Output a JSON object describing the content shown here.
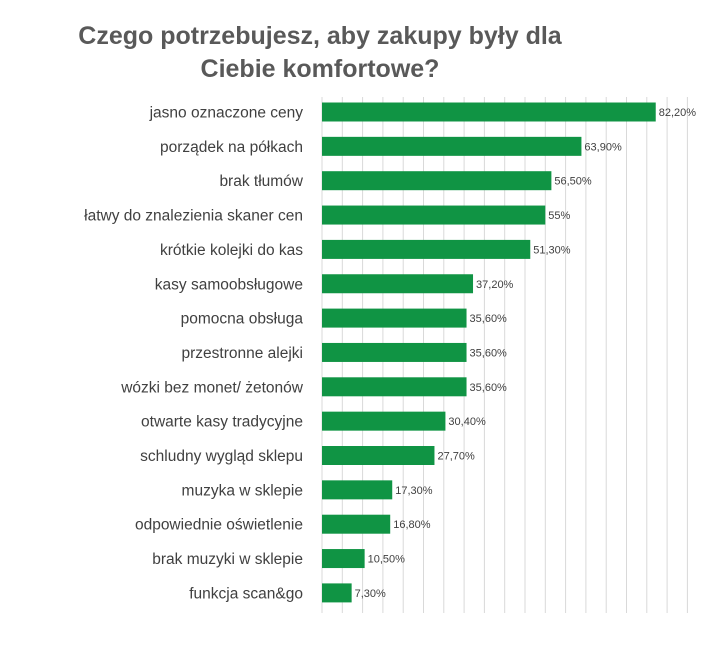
{
  "chart_data": {
    "type": "bar",
    "orientation": "horizontal",
    "title_line1": "Czego potrzebujesz, aby zakupy były dla",
    "title_line2": "Ciebie komfortowe?",
    "categories": [
      "jasno oznaczone ceny",
      "porządek na półkach",
      "brak tłumów",
      "łatwy do znalezienia skaner cen",
      "krótkie kolejki do kas",
      "kasy samoobsługowe",
      "pomocna obsługa",
      "przestronne alejki",
      "wózki bez monet/ żetonów",
      "otwarte kasy tradycyjne",
      "schludny wygląd sklepu",
      "muzyka w sklepie",
      "odpowiednie oświetlenie",
      "brak muzyki w sklepie",
      "funkcja scan&go"
    ],
    "values": [
      82.2,
      63.9,
      56.5,
      55,
      51.3,
      37.2,
      35.6,
      35.6,
      35.6,
      30.4,
      27.7,
      17.3,
      16.8,
      10.5,
      7.3
    ],
    "value_labels": [
      "82,20%",
      "63,90%",
      "56,50%",
      "55%",
      "51,30%",
      "37,20%",
      "35,60%",
      "35,60%",
      "35,60%",
      "30,40%",
      "27,70%",
      "17,30%",
      "16,80%",
      "10,50%",
      "7,30%"
    ],
    "xlim": [
      0,
      90
    ],
    "grid": true,
    "colors": {
      "bar": "#109444",
      "grid": "#d9d9d9",
      "text": "#404040",
      "title": "#595959"
    }
  }
}
